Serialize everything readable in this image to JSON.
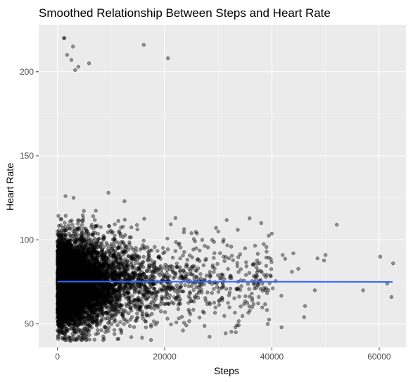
{
  "chart_data": {
    "type": "scatter",
    "title": "Smoothed Relationship Between Steps and Heart Rate",
    "xlabel": "Steps",
    "ylabel": "Heart Rate",
    "xlim": [
      -3500,
      65000
    ],
    "ylim": [
      36,
      228
    ],
    "x_ticks": [
      0,
      20000,
      40000,
      60000
    ],
    "x_tick_labels": [
      "0",
      "20000",
      "40000",
      "60000"
    ],
    "y_ticks": [
      50,
      100,
      150,
      200
    ],
    "y_tick_labels": [
      "50",
      "100",
      "150",
      "200"
    ],
    "grid": true,
    "legend": "none",
    "colors": {
      "panel": "#ebebeb",
      "grid_major": "#ffffff",
      "points": "#000000",
      "smooth_line": "#3366ff"
    },
    "smooth_line": {
      "x": [
        0,
        62500
      ],
      "y": [
        75.2,
        75.0
      ]
    },
    "highlighted_points": {
      "x": [
        1200,
        1300,
        1800,
        2600,
        2900,
        3300,
        3900,
        5900,
        16100,
        20600,
        52100,
        60200,
        61500,
        62300,
        62600,
        57000,
        41800,
        46000,
        48000,
        33200,
        38000,
        30000,
        35000,
        39000,
        42000,
        44000,
        50000,
        48500,
        36500,
        31000,
        27000,
        25000,
        22000,
        12500,
        9500,
        1500,
        3000
      ],
      "y": [
        220,
        220,
        210,
        207,
        215,
        201,
        203,
        205,
        216,
        208,
        109,
        90,
        74,
        66,
        86,
        70,
        48,
        54,
        70,
        48,
        110,
        105,
        95,
        93,
        91,
        92,
        91,
        89,
        85,
        90,
        100,
        104,
        113,
        123,
        128,
        126,
        125
      ]
    },
    "bulk_points": {
      "count": 7000,
      "x_distribution": "exponential, concentrated near 0, sparse beyond 30000",
      "y_range": [
        40,
        120
      ],
      "y_center": 75
    }
  }
}
